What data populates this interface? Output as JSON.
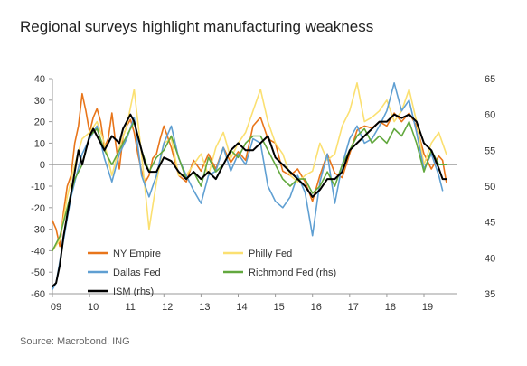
{
  "title": "Regional surveys highlight manufacturing weakness",
  "source": "Source: Macrobond, ING",
  "chart_data": {
    "type": "line",
    "x_unit": "year",
    "xlim": [
      2009.0,
      2019.9
    ],
    "x_ticks": [
      2009,
      2010,
      2011,
      2012,
      2013,
      2014,
      2015,
      2016,
      2017,
      2018,
      2019
    ],
    "x_tick_labels": [
      "09",
      "10",
      "11",
      "12",
      "13",
      "14",
      "15",
      "16",
      "17",
      "18",
      "19"
    ],
    "y_left": {
      "ylim": [
        -60,
        40
      ],
      "ticks": [
        -60,
        -50,
        -40,
        -30,
        -20,
        -10,
        0,
        10,
        20,
        30,
        40
      ]
    },
    "y_right": {
      "ylim": [
        35,
        65
      ],
      "ticks": [
        35,
        40,
        45,
        50,
        55,
        60,
        65
      ]
    },
    "grid": false,
    "legend_position": "bottom-left",
    "series": [
      {
        "name": "NY Empire",
        "axis": "left",
        "color": "#E8751A",
        "width": 1.6,
        "x": [
          2009.0,
          2009.1,
          2009.2,
          2009.3,
          2009.4,
          2009.5,
          2009.6,
          2009.7,
          2009.8,
          2009.9,
          2010.0,
          2010.1,
          2010.2,
          2010.3,
          2010.4,
          2010.5,
          2010.6,
          2010.7,
          2010.8,
          2010.9,
          2011.0,
          2011.1,
          2011.2,
          2011.3,
          2011.4,
          2011.5,
          2011.6,
          2011.7,
          2011.8,
          2011.9,
          2012.0,
          2012.2,
          2012.4,
          2012.6,
          2012.8,
          2013.0,
          2013.2,
          2013.4,
          2013.6,
          2013.8,
          2014.0,
          2014.2,
          2014.4,
          2014.6,
          2014.8,
          2015.0,
          2015.2,
          2015.4,
          2015.6,
          2015.8,
          2016.0,
          2016.2,
          2016.4,
          2016.6,
          2016.8,
          2017.0,
          2017.2,
          2017.4,
          2017.6,
          2017.8,
          2018.0,
          2018.2,
          2018.4,
          2018.6,
          2018.8,
          2019.0,
          2019.2,
          2019.4,
          2019.5,
          2019.6
        ],
        "y": [
          -26,
          -30,
          -38,
          -22,
          -10,
          -5,
          10,
          18,
          33,
          25,
          15,
          22,
          26,
          20,
          8,
          12,
          24,
          10,
          -2,
          13,
          18,
          21,
          15,
          5,
          -3,
          -8,
          -5,
          3,
          5,
          12,
          18,
          8,
          -5,
          -8,
          2,
          -3,
          5,
          -2,
          8,
          1,
          6,
          2,
          18,
          22,
          12,
          10,
          -3,
          -5,
          -2,
          -8,
          -17,
          -5,
          5,
          -4,
          -6,
          5,
          16,
          18,
          17,
          20,
          18,
          24,
          20,
          24,
          18,
          5,
          -2,
          4,
          2,
          -8
        ]
      },
      {
        "name": "Philly Fed",
        "axis": "left",
        "color": "#FBE071",
        "width": 1.6,
        "x": [
          2009.0,
          2009.2,
          2009.4,
          2009.6,
          2009.8,
          2010.0,
          2010.2,
          2010.4,
          2010.6,
          2010.8,
          2011.0,
          2011.2,
          2011.4,
          2011.6,
          2011.8,
          2012.0,
          2012.2,
          2012.4,
          2012.6,
          2012.8,
          2013.0,
          2013.2,
          2013.4,
          2013.6,
          2013.8,
          2014.0,
          2014.2,
          2014.4,
          2014.6,
          2014.8,
          2015.0,
          2015.2,
          2015.4,
          2015.6,
          2015.8,
          2016.0,
          2016.2,
          2016.4,
          2016.6,
          2016.8,
          2017.0,
          2017.2,
          2017.4,
          2017.6,
          2017.8,
          2018.0,
          2018.2,
          2018.4,
          2018.6,
          2018.8,
          2019.0,
          2019.2,
          2019.4,
          2019.6
        ],
        "y": [
          -40,
          -35,
          -15,
          0,
          12,
          15,
          20,
          10,
          -5,
          8,
          18,
          35,
          5,
          -30,
          -8,
          10,
          12,
          -5,
          -5,
          0,
          5,
          -5,
          8,
          15,
          3,
          10,
          15,
          25,
          35,
          20,
          10,
          5,
          -5,
          -8,
          -5,
          -3,
          10,
          2,
          5,
          18,
          25,
          38,
          20,
          22,
          25,
          30,
          20,
          25,
          35,
          20,
          0,
          10,
          15,
          5
        ]
      },
      {
        "name": "Dallas Fed",
        "axis": "left",
        "color": "#5F9FD2",
        "width": 1.6,
        "x": [
          2009.0,
          2009.1,
          2009.2,
          2009.3,
          2009.4,
          2009.5,
          2009.6,
          2009.8,
          2010.0,
          2010.2,
          2010.4,
          2010.6,
          2010.8,
          2011.0,
          2011.2,
          2011.4,
          2011.6,
          2011.8,
          2012.0,
          2012.2,
          2012.4,
          2012.6,
          2012.8,
          2013.0,
          2013.2,
          2013.4,
          2013.6,
          2013.8,
          2014.0,
          2014.2,
          2014.4,
          2014.6,
          2014.8,
          2015.0,
          2015.2,
          2015.4,
          2015.6,
          2015.8,
          2016.0,
          2016.2,
          2016.4,
          2016.6,
          2016.8,
          2017.0,
          2017.2,
          2017.4,
          2017.6,
          2017.8,
          2018.0,
          2018.2,
          2018.4,
          2018.6,
          2018.8,
          2019.0,
          2019.2,
          2019.4,
          2019.5
        ],
        "y": [
          -58,
          -55,
          -45,
          -35,
          -25,
          -15,
          -8,
          5,
          12,
          18,
          3,
          -8,
          5,
          12,
          22,
          -5,
          -15,
          -5,
          10,
          18,
          3,
          -5,
          -12,
          -18,
          -5,
          -3,
          8,
          -3,
          5,
          0,
          12,
          10,
          -10,
          -17,
          -20,
          -15,
          -5,
          -13,
          -33,
          -8,
          5,
          -18,
          0,
          12,
          18,
          10,
          12,
          18,
          25,
          38,
          25,
          30,
          15,
          -2,
          5,
          -5,
          -12
        ]
      },
      {
        "name": "Richmond Fed (rhs)",
        "axis": "right",
        "color": "#62A83E",
        "width": 1.6,
        "x": [
          2009.0,
          2009.2,
          2009.4,
          2009.6,
          2009.8,
          2010.0,
          2010.2,
          2010.4,
          2010.6,
          2010.8,
          2011.0,
          2011.2,
          2011.4,
          2011.6,
          2011.8,
          2012.0,
          2012.2,
          2012.4,
          2012.6,
          2012.8,
          2013.0,
          2013.2,
          2013.4,
          2013.6,
          2013.8,
          2014.0,
          2014.2,
          2014.4,
          2014.6,
          2014.8,
          2015.0,
          2015.2,
          2015.4,
          2015.6,
          2015.8,
          2016.0,
          2016.2,
          2016.4,
          2016.6,
          2016.8,
          2017.0,
          2017.2,
          2017.4,
          2017.6,
          2017.8,
          2018.0,
          2018.2,
          2018.4,
          2018.6,
          2018.8,
          2019.0,
          2019.2,
          2019.4,
          2019.6
        ],
        "y": [
          41,
          43,
          47,
          51,
          53,
          57,
          58,
          55,
          53,
          55,
          57,
          59,
          55,
          52,
          54,
          55,
          57,
          54,
          51,
          52,
          50,
          54,
          52,
          53,
          55,
          54,
          56,
          57,
          57,
          55,
          53,
          51,
          50,
          51,
          51,
          49,
          50,
          52,
          50,
          53,
          55,
          57,
          58,
          56,
          57,
          56,
          58,
          57,
          59,
          56,
          52,
          55,
          53,
          53
        ]
      },
      {
        "name": "ISM (rhs)",
        "axis": "right",
        "color": "#000000",
        "width": 2.0,
        "x": [
          2009.0,
          2009.1,
          2009.2,
          2009.3,
          2009.4,
          2009.5,
          2009.6,
          2009.7,
          2009.8,
          2009.9,
          2010.0,
          2010.1,
          2010.2,
          2010.3,
          2010.4,
          2010.5,
          2010.6,
          2010.7,
          2010.8,
          2010.9,
          2011.0,
          2011.1,
          2011.2,
          2011.3,
          2011.4,
          2011.5,
          2011.6,
          2011.7,
          2011.8,
          2011.9,
          2012.0,
          2012.2,
          2012.4,
          2012.6,
          2012.8,
          2013.0,
          2013.2,
          2013.4,
          2013.6,
          2013.8,
          2014.0,
          2014.2,
          2014.4,
          2014.6,
          2014.8,
          2015.0,
          2015.2,
          2015.4,
          2015.6,
          2015.8,
          2016.0,
          2016.2,
          2016.4,
          2016.6,
          2016.8,
          2017.0,
          2017.2,
          2017.4,
          2017.6,
          2017.8,
          2018.0,
          2018.2,
          2018.4,
          2018.6,
          2018.8,
          2019.0,
          2019.2,
          2019.4,
          2019.5,
          2019.6
        ],
        "y": [
          36,
          36.5,
          39,
          43,
          46,
          49,
          52,
          55,
          53,
          55,
          57,
          58,
          57,
          56,
          55,
          56,
          57,
          56.5,
          56,
          58,
          59,
          60,
          59,
          57,
          55,
          53,
          52,
          52,
          52,
          53,
          54,
          53.5,
          52,
          51,
          52,
          51,
          52,
          51,
          53,
          55,
          56,
          55,
          55,
          56,
          57,
          54,
          53,
          52,
          51,
          50,
          48.5,
          49.5,
          51,
          51,
          52,
          55,
          56,
          57,
          58,
          59,
          59,
          60,
          59.5,
          60,
          59,
          56,
          55,
          52.5,
          51,
          51
        ]
      }
    ]
  },
  "legend": [
    {
      "label": "NY Empire",
      "color": "#E8751A"
    },
    {
      "label": "Philly Fed",
      "color": "#FBE071"
    },
    {
      "label": "Dallas Fed",
      "color": "#5F9FD2"
    },
    {
      "label": "Richmond Fed (rhs)",
      "color": "#62A83E"
    },
    {
      "label": "ISM (rhs)",
      "color": "#000000"
    }
  ]
}
